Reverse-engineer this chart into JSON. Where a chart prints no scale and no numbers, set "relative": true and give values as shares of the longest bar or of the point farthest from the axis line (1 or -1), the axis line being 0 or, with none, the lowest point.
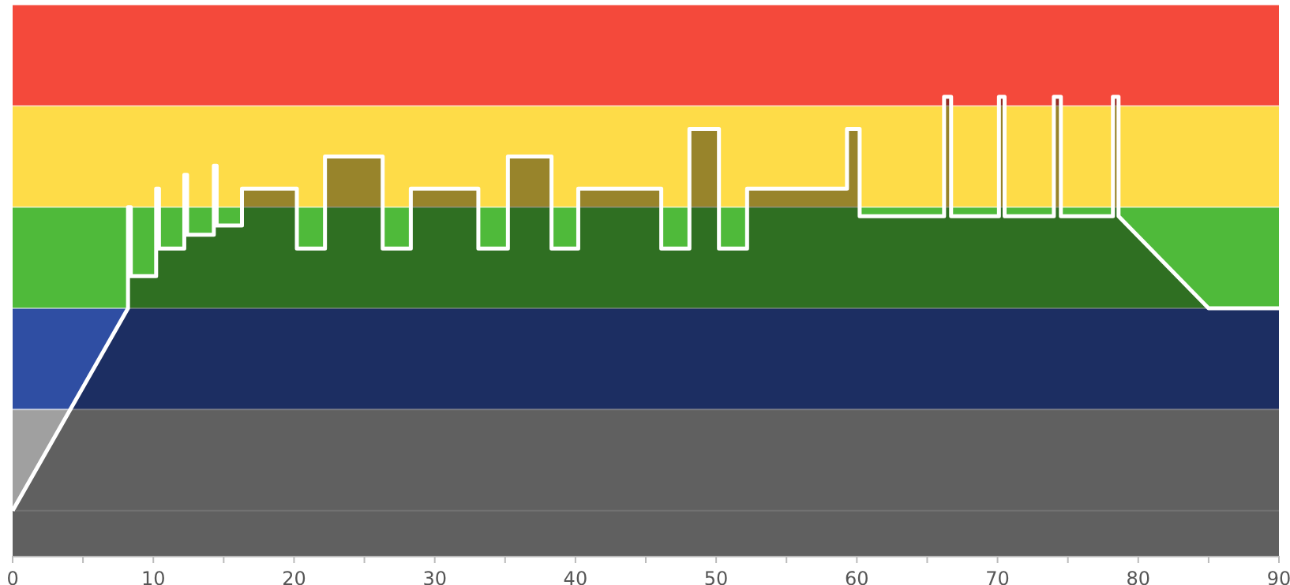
{
  "chart_data": {
    "type": "area",
    "relative": true,
    "x": [
      0,
      8.2,
      8.2,
      8.4,
      8.4,
      10.2,
      10.2,
      10.4,
      10.4,
      12.2,
      12.2,
      12.4,
      12.4,
      14.3,
      14.3,
      14.5,
      14.5,
      16.3,
      16.3,
      20.2,
      20.2,
      22.2,
      22.2,
      26.3,
      26.3,
      28.3,
      28.3,
      33.1,
      33.1,
      35.2,
      35.2,
      38.3,
      38.3,
      40.2,
      40.2,
      46.1,
      46.1,
      48.1,
      48.1,
      50.2,
      50.2,
      52.2,
      52.2,
      59.3,
      59.3,
      60.2,
      60.2,
      66.2,
      66.2,
      66.7,
      66.7,
      70.1,
      70.1,
      70.5,
      70.5,
      74.0,
      74.0,
      74.5,
      74.5,
      78.2,
      78.2,
      78.6,
      78.6,
      85.0,
      90
    ],
    "series": [
      {
        "color": "#ffffff",
        "values": [
          0.1,
          0.54,
          0.76,
          0.76,
          0.61,
          0.61,
          0.8,
          0.8,
          0.67,
          0.67,
          0.83,
          0.83,
          0.7,
          0.7,
          0.85,
          0.85,
          0.72,
          0.72,
          0.8,
          0.8,
          0.67,
          0.67,
          0.87,
          0.87,
          0.67,
          0.67,
          0.8,
          0.8,
          0.67,
          0.67,
          0.87,
          0.87,
          0.67,
          0.67,
          0.8,
          0.8,
          0.67,
          0.67,
          0.93,
          0.93,
          0.67,
          0.67,
          0.8,
          0.8,
          0.93,
          0.93,
          0.74,
          0.74,
          1,
          1,
          0.74,
          0.74,
          1,
          1,
          0.74,
          0.74,
          1,
          1,
          0.74,
          0.74,
          1,
          1,
          0.74,
          0.54,
          0.54
        ]
      }
    ],
    "xlim": [
      0,
      90
    ],
    "xticks": [
      0,
      {
        "value": 5,
        "label": null
      },
      10,
      {
        "value": 15,
        "label": null
      },
      20,
      {
        "value": 25,
        "label": null
      },
      30,
      {
        "value": 35,
        "label": null
      },
      40,
      {
        "value": 45,
        "label": null
      },
      50,
      {
        "value": 55,
        "label": null
      },
      60,
      {
        "value": 65,
        "label": null
      },
      70,
      {
        "value": 75,
        "label": null
      },
      80,
      {
        "value": 85,
        "label": null
      },
      90
    ],
    "bands": [
      {
        "axis": "y",
        "from": 0,
        "to": 0.32,
        "color": "#a0a0a0"
      },
      {
        "axis": "y",
        "from": 0.32,
        "to": 0.54,
        "color": "#2f4ea3"
      },
      {
        "axis": "y",
        "from": 0.54,
        "to": 0.76,
        "color": "#4fba3a"
      },
      {
        "axis": "y",
        "from": 0.76,
        "to": 0.98,
        "color": "#fedc48"
      },
      {
        "axis": "y",
        "from": 0.98,
        "to": 1.2,
        "color": "#f4493b"
      }
    ],
    "ref_lines": [
      {
        "axis": "y",
        "value": 0.1,
        "color": "#bdbdbd"
      }
    ],
    "grid": false,
    "tick_labels": "x"
  }
}
